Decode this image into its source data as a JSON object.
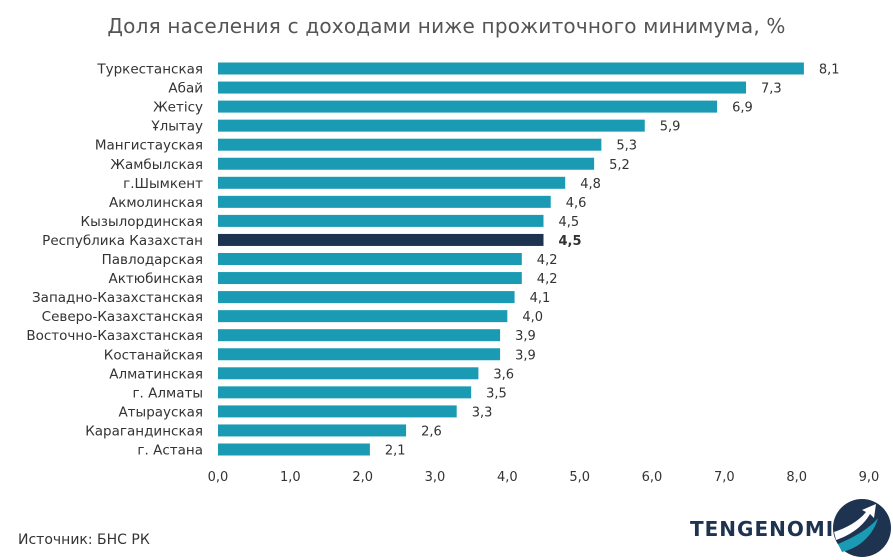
{
  "chart_data": {
    "type": "bar",
    "orientation": "horizontal",
    "title": "Доля населения с доходами ниже прожиточного минимума, %",
    "categories": [
      "Туркестанская",
      "Абай",
      "Жетісу",
      "Ұлытау",
      "Мангистауская",
      "Жамбылская",
      "г.Шымкент",
      "Акмолинская",
      "Кызылординская",
      "Республика Казахстан",
      "Павлодарская",
      "Актюбинская",
      "Западно-Казахстанская",
      "Северо-Казахстанская",
      "Восточно-Казахстанская",
      "Костанайская",
      "Алматинская",
      "г. Алматы",
      "Атырауская",
      "Карагандинская",
      "г. Астана"
    ],
    "values": [
      8.1,
      7.3,
      6.9,
      5.9,
      5.3,
      5.2,
      4.8,
      4.6,
      4.5,
      4.5,
      4.2,
      4.2,
      4.1,
      4.0,
      3.9,
      3.9,
      3.6,
      3.5,
      3.3,
      2.6,
      2.1
    ],
    "value_labels": [
      "8,1",
      "7,3",
      "6,9",
      "5,9",
      "5,3",
      "5,2",
      "4,8",
      "4,6",
      "4,5",
      "4,5",
      "4,2",
      "4,2",
      "4,1",
      "4,0",
      "3,9",
      "3,9",
      "3,6",
      "3,5",
      "3,3",
      "2,6",
      "2,1"
    ],
    "highlight_category": "Республика Казахстан",
    "xlim": [
      0,
      9
    ],
    "x_ticks": [
      "0,0",
      "1,0",
      "2,0",
      "3,0",
      "4,0",
      "5,0",
      "6,0",
      "7,0",
      "8,0",
      "9,0"
    ],
    "grid": false,
    "colors": {
      "bar": "#1a9bb3",
      "highlight": "#1e3350"
    }
  },
  "footer": {
    "source": "Источник: БНС РК",
    "brand": "TENGENOMIKA",
    "logo_icon": "tengenomika-swoosh-icon"
  }
}
